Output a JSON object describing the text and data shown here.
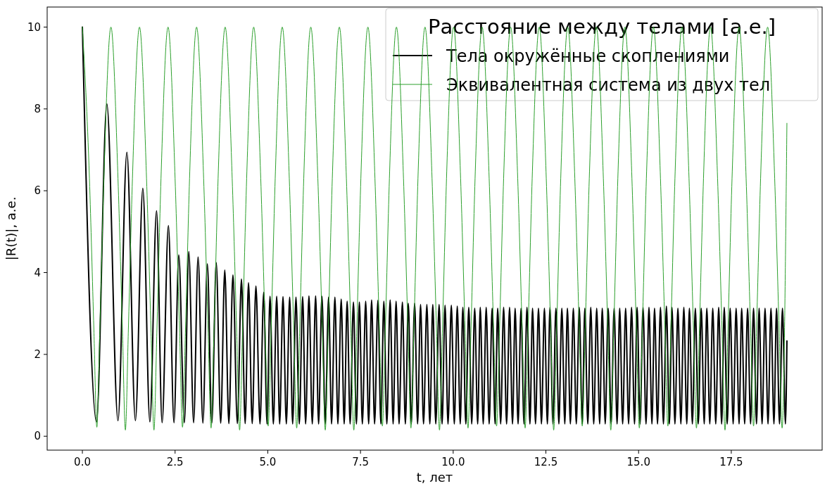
{
  "chart_data": {
    "type": "line",
    "xlabel": "t, лет",
    "ylabel": "|R(t)|, а.е.",
    "legend_title": "Расстояние между телами [а.е.]",
    "legend": "top right",
    "grid": false,
    "marker": "none",
    "line_style": "solid",
    "xlim": [
      -0.95,
      19.95
    ],
    "ylim": [
      -0.34,
      10.49
    ],
    "xticks": [
      {
        "value": 0,
        "label": "0.0"
      },
      {
        "value": 2.5,
        "label": "2.5"
      },
      {
        "value": 5,
        "label": "5.0"
      },
      {
        "value": 7.5,
        "label": "7.5"
      },
      {
        "value": 10,
        "label": "10.0"
      },
      {
        "value": 12.5,
        "label": "12.5"
      },
      {
        "value": 15,
        "label": "15.0"
      },
      {
        "value": 17.5,
        "label": "17.5"
      }
    ],
    "yticks": [
      0,
      2,
      4,
      6,
      8,
      10
    ],
    "series": [
      {
        "name": "Тела окружённые скоплениями",
        "color": "#000000",
        "x": [
          0,
          0.38,
          0.66,
          0.96,
          1.2,
          1.43,
          1.63,
          1.82,
          2.0,
          2.15,
          2.32,
          2.47,
          2.6,
          2.75,
          2.87,
          3.0,
          3.12,
          3.25,
          3.37,
          3.49,
          3.61,
          3.73,
          3.84,
          3.95,
          4.06,
          4.18,
          4.29,
          4.39,
          4.48,
          4.58,
          4.68,
          4.79,
          4.89,
          4.98,
          5.06,
          5.15,
          5.24,
          5.32,
          5.41,
          5.5,
          5.59,
          5.67,
          5.76,
          5.85,
          5.94,
          6.02,
          6.11,
          6.2,
          6.29,
          6.37,
          6.46,
          6.55,
          6.64,
          6.72,
          6.81,
          6.89,
          6.98,
          7.06,
          7.14,
          7.22,
          7.31,
          7.39,
          7.47,
          7.55,
          7.64,
          7.72,
          7.8,
          7.88,
          7.97,
          8.05,
          8.13,
          8.21,
          8.3,
          8.38,
          8.46,
          8.54,
          8.63,
          8.71,
          8.79,
          8.87,
          8.96,
          9.04,
          9.12,
          9.2,
          9.29,
          9.37,
          9.45,
          9.53,
          9.62,
          9.7,
          9.78,
          9.86,
          9.95,
          10.03,
          10.11,
          10.19,
          10.26,
          10.34,
          10.42,
          10.5,
          10.58,
          10.66,
          10.73,
          10.81,
          10.89,
          10.97,
          11.05,
          11.13,
          11.2,
          11.28,
          11.36,
          11.44,
          11.52,
          11.6,
          11.67,
          11.75,
          11.83,
          11.91,
          11.99,
          12.07,
          12.14,
          12.22,
          12.3,
          12.38,
          12.46,
          12.54,
          12.61,
          12.69,
          12.77,
          12.85,
          12.93,
          13.01,
          13.08,
          13.16,
          13.24,
          13.32,
          13.4,
          13.48,
          13.55,
          13.63,
          13.71,
          13.79,
          13.87,
          13.95,
          14.02,
          14.1,
          14.18,
          14.26,
          14.34,
          14.42,
          14.49,
          14.57,
          14.65,
          14.73,
          14.81,
          14.89,
          14.96,
          15.04,
          15.12,
          15.2,
          15.28,
          15.36,
          15.43,
          15.51,
          15.59,
          15.67,
          15.75,
          15.83,
          15.9,
          15.98,
          16.06,
          16.14,
          16.22,
          16.3,
          16.37,
          16.45,
          16.53,
          16.61,
          16.69,
          16.77,
          16.84,
          16.92,
          17.0,
          17.08,
          17.16,
          17.24,
          17.31,
          17.39,
          17.47,
          17.55,
          17.63,
          17.71,
          17.78,
          17.86,
          17.94,
          18.02,
          18.1,
          18.18,
          18.25,
          18.33,
          18.41,
          18.49,
          18.57,
          18.65,
          18.72,
          18.8,
          18.88,
          18.96,
          19.0
        ],
        "values": [
          10,
          0.35,
          8.12,
          0.38,
          6.94,
          0.38,
          6.06,
          0.35,
          5.51,
          0.33,
          5.15,
          0.33,
          4.43,
          0.33,
          4.51,
          0.33,
          4.38,
          0.32,
          4.21,
          0.32,
          4.24,
          0.32,
          4.06,
          0.31,
          3.94,
          0.31,
          3.84,
          0.31,
          3.75,
          0.31,
          3.67,
          0.3,
          3.52,
          0.3,
          3.42,
          0.3,
          3.42,
          0.3,
          3.41,
          0.3,
          3.4,
          0.3,
          3.4,
          0.3,
          3.41,
          0.3,
          3.43,
          0.3,
          3.43,
          0.3,
          3.42,
          0.3,
          3.4,
          0.3,
          3.4,
          0.3,
          3.35,
          0.3,
          3.3,
          0.3,
          3.28,
          0.3,
          3.28,
          0.3,
          3.3,
          0.3,
          3.33,
          0.3,
          3.32,
          0.3,
          3.3,
          0.3,
          3.33,
          0.3,
          3.3,
          0.3,
          3.28,
          0.3,
          3.25,
          0.3,
          3.25,
          0.3,
          3.22,
          0.3,
          3.22,
          0.3,
          3.22,
          0.3,
          3.22,
          0.3,
          3.2,
          0.3,
          3.2,
          0.3,
          3.18,
          0.3,
          3.15,
          0.3,
          3.15,
          0.3,
          3.13,
          0.3,
          3.15,
          0.3,
          3.15,
          0.3,
          3.13,
          0.3,
          3.13,
          0.3,
          3.15,
          0.3,
          3.15,
          0.3,
          3.13,
          0.3,
          3.13,
          0.3,
          3.15,
          0.3,
          3.13,
          0.3,
          3.13,
          0.3,
          3.13,
          0.3,
          3.15,
          0.3,
          3.13,
          0.3,
          3.13,
          0.3,
          3.13,
          0.3,
          3.13,
          0.3,
          3.15,
          0.3,
          3.13,
          0.3,
          3.15,
          0.3,
          3.13,
          0.3,
          3.13,
          0.3,
          3.13,
          0.3,
          3.13,
          0.3,
          3.13,
          0.3,
          3.13,
          0.3,
          3.15,
          0.3,
          3.15,
          0.3,
          3.15,
          0.3,
          3.15,
          0.3,
          3.13,
          0.3,
          3.15,
          0.3,
          3.18,
          0.3,
          3.15,
          0.3,
          3.13,
          0.3,
          3.15,
          0.3,
          3.13,
          0.3,
          3.13,
          0.3,
          3.13,
          0.3,
          3.13,
          0.3,
          3.13,
          0.3,
          3.15,
          0.3,
          3.15,
          0.3,
          3.13,
          0.3,
          3.13,
          0.3,
          3.13,
          0.3,
          3.13,
          0.3,
          3.13,
          0.3,
          3.13,
          0.3,
          3.13,
          0.3,
          3.13,
          0.3,
          3.13,
          0.3,
          3.13,
          0.3,
          2.33
        ]
      },
      {
        "name": "Эквивалентная система из двух тел",
        "color": "#2ca02c",
        "x": [
          0,
          0.19,
          0.31,
          0.39,
          0.47,
          0.58,
          0.77,
          0.96,
          1.08,
          1.16,
          1.24,
          1.35,
          1.54,
          1.73,
          1.85,
          1.93,
          2.01,
          2.12,
          2.31,
          2.5,
          2.62,
          2.7,
          2.78,
          2.89,
          3.08,
          3.27,
          3.39,
          3.47,
          3.55,
          3.66,
          3.85,
          4.04,
          4.16,
          4.24,
          4.32,
          4.43,
          4.62,
          4.81,
          4.93,
          5.01,
          5.09,
          5.2,
          5.39,
          5.58,
          5.7,
          5.78,
          5.86,
          5.97,
          6.16,
          6.35,
          6.47,
          6.55,
          6.63,
          6.74,
          6.93,
          7.12,
          7.24,
          7.32,
          7.4,
          7.51,
          7.7,
          7.89,
          8.01,
          8.09,
          8.17,
          8.28,
          8.47,
          8.66,
          8.78,
          8.86,
          8.94,
          9.05,
          9.24,
          9.43,
          9.55,
          9.63,
          9.71,
          9.82,
          10.01,
          10.2,
          10.32,
          10.4,
          10.48,
          10.59,
          10.78,
          10.97,
          11.09,
          11.17,
          11.25,
          11.36,
          11.55,
          11.74,
          11.86,
          11.94,
          12.02,
          12.13,
          12.32,
          12.51,
          12.63,
          12.71,
          12.79,
          12.9,
          13.09,
          13.28,
          13.4,
          13.48,
          13.56,
          13.67,
          13.86,
          14.05,
          14.17,
          14.25,
          14.33,
          14.44,
          14.63,
          14.82,
          14.94,
          15.02,
          15.1,
          15.21,
          15.4,
          15.59,
          15.71,
          15.79,
          15.87,
          15.98,
          16.17,
          16.36,
          16.48,
          16.56,
          16.64,
          16.75,
          16.94,
          17.13,
          17.25,
          17.33,
          17.41,
          17.52,
          17.71,
          17.9,
          18.02,
          18.1,
          18.18,
          18.29,
          18.48,
          18.67,
          18.79,
          18.87,
          19.0
        ],
        "values": [
          10,
          6.3,
          2.6,
          0.22,
          2.6,
          6.3,
          10,
          6.3,
          2.6,
          0.15,
          2.6,
          6.3,
          10,
          6.3,
          2.6,
          0.15,
          2.6,
          6.3,
          10,
          6.3,
          2.6,
          0.22,
          2.6,
          6.3,
          10,
          6.3,
          2.6,
          0.2,
          2.6,
          6.3,
          10,
          6.3,
          2.6,
          0.15,
          2.6,
          6.3,
          10,
          6.3,
          2.6,
          0.25,
          2.6,
          6.3,
          10,
          6.3,
          2.6,
          0.2,
          2.6,
          6.3,
          10,
          6.3,
          2.6,
          0.15,
          2.6,
          6.3,
          10,
          6.3,
          2.6,
          0.15,
          2.6,
          6.3,
          10,
          6.3,
          2.6,
          0.25,
          2.6,
          6.3,
          10,
          6.3,
          2.6,
          0.2,
          2.6,
          6.3,
          10,
          6.3,
          2.6,
          0.15,
          2.6,
          6.3,
          10,
          6.3,
          2.6,
          0.2,
          2.6,
          6.3,
          10,
          6.3,
          2.6,
          0.25,
          2.6,
          6.3,
          10,
          6.3,
          2.6,
          0.2,
          2.6,
          6.3,
          10,
          6.3,
          2.6,
          0.15,
          2.6,
          6.3,
          10,
          6.3,
          2.6,
          0.25,
          2.6,
          6.3,
          10,
          6.3,
          2.6,
          0.15,
          2.6,
          6.3,
          10,
          6.3,
          2.6,
          0.2,
          2.6,
          6.3,
          10,
          6.3,
          2.6,
          0.25,
          2.6,
          6.3,
          10,
          6.3,
          2.6,
          0.2,
          2.6,
          6.3,
          10,
          6.3,
          2.6,
          0.15,
          2.6,
          6.3,
          10,
          6.3,
          2.6,
          0.25,
          2.6,
          6.3,
          10,
          6.3,
          2.6,
          0.2,
          7.65
        ]
      }
    ]
  }
}
